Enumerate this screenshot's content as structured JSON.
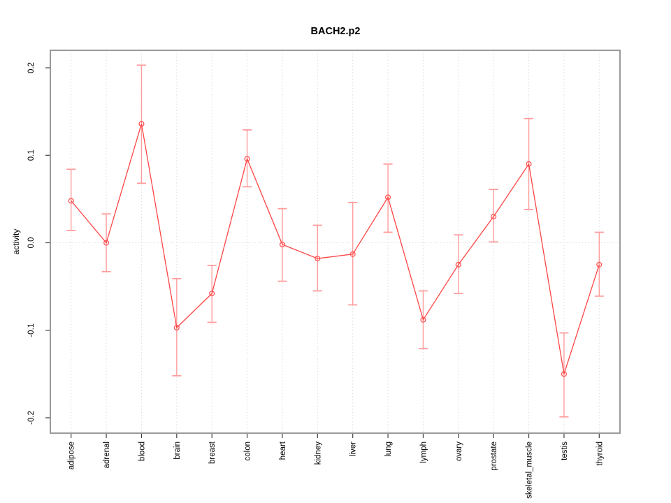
{
  "chart_data": {
    "type": "line",
    "title": "BACH2.p2",
    "ylabel": "activity",
    "xlabel": "",
    "legend": "none",
    "grid": "vertical-dotted-plus-zero-line",
    "categories": [
      "adipose",
      "adrenal",
      "blood",
      "brain",
      "breast",
      "colon",
      "heart",
      "kidney",
      "liver",
      "lung",
      "lymph",
      "ovary",
      "prostate",
      "skeletal_muscle",
      "testis",
      "thyroid"
    ],
    "series": [
      {
        "name": "activity",
        "values": [
          0.048,
          0.0,
          0.136,
          -0.097,
          -0.058,
          0.096,
          -0.002,
          -0.018,
          -0.013,
          0.052,
          -0.088,
          -0.025,
          0.03,
          0.09,
          -0.15,
          -0.025
        ],
        "error_low": [
          0.014,
          -0.033,
          0.068,
          -0.152,
          -0.091,
          0.064,
          -0.044,
          -0.055,
          -0.071,
          0.012,
          -0.121,
          -0.058,
          0.001,
          0.038,
          -0.199,
          -0.061
        ],
        "error_high": [
          0.084,
          0.033,
          0.203,
          -0.041,
          -0.026,
          0.129,
          0.039,
          0.02,
          0.046,
          0.09,
          -0.055,
          0.009,
          0.061,
          0.142,
          -0.103,
          0.012
        ]
      }
    ],
    "yticks": [
      0.2,
      0.1,
      0.0,
      -0.1,
      -0.2
    ],
    "ytick_labels": [
      "0.2",
      "0.1",
      "0.0",
      "-0.1",
      "-0.2"
    ],
    "ylim": [
      -0.2176,
      0.22
    ],
    "zero_line": true,
    "colors": {
      "line": "#FF4444",
      "point": "#FF5555",
      "error_bar": "#FF9D9D",
      "grid": "#DCDCDC",
      "zero_line": "#DCDCDC",
      "box": "#909090",
      "tick": "#404040",
      "text": "#000000",
      "background": "#FFFFFF"
    }
  }
}
